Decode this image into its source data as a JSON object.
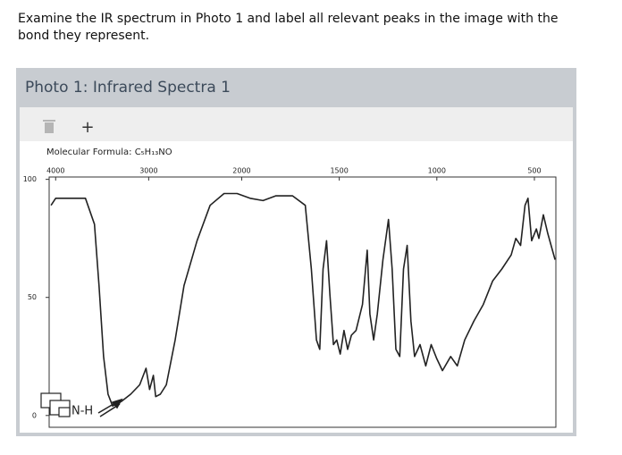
{
  "question": "Examine the IR spectrum in Photo 1 and label all relevant peaks in the image with the bond they represent.",
  "panel": {
    "title": "Photo 1: Infrared Spectra 1",
    "toolbar_add": "+"
  },
  "chart_data": {
    "type": "line",
    "subtitle": "Molecular Formula: C₅H₁₃NO",
    "annotation": "N-H",
    "color": "#222222",
    "xlim": [
      4070,
      390
    ],
    "xscale_break": 2000,
    "xticks": [
      4000,
      3000,
      2000,
      1500,
      1000,
      500
    ],
    "ylim": [
      -5,
      101
    ],
    "yticks": [
      0,
      50,
      100
    ],
    "x": [
      4050,
      4000,
      3680,
      3583,
      3534,
      3485,
      3437,
      3388,
      3291,
      3194,
      3097,
      3029,
      2990,
      2950,
      2925,
      2875,
      2810,
      2715,
      2620,
      2480,
      2340,
      2190,
      2050,
      1957,
      1891,
      1826,
      1739,
      1674,
      1643,
      1617,
      1600,
      1583,
      1565,
      1548,
      1530,
      1513,
      1495,
      1476,
      1457,
      1438,
      1414,
      1381,
      1357,
      1343,
      1324,
      1305,
      1276,
      1248,
      1229,
      1210,
      1190,
      1171,
      1152,
      1133,
      1114,
      1086,
      1057,
      1029,
      1000,
      971,
      929,
      895,
      857,
      810,
      762,
      714,
      667,
      619,
      595,
      571,
      548,
      533,
      514,
      490,
      477,
      454,
      431,
      394
    ],
    "values": [
      89,
      92,
      92,
      81,
      55,
      25,
      9,
      4,
      6,
      9,
      13,
      20,
      11,
      17,
      8,
      9,
      13,
      32,
      55,
      74,
      89,
      94,
      94,
      92,
      91,
      93,
      93,
      89,
      62,
      32,
      28,
      62,
      74,
      51,
      30,
      32,
      26,
      36,
      28,
      34,
      36,
      47,
      70,
      43,
      32,
      43,
      66,
      83,
      62,
      28,
      25,
      62,
      72,
      40,
      25,
      30,
      21,
      30,
      24,
      19,
      25,
      21,
      32,
      40,
      47,
      57,
      62,
      68,
      75,
      72,
      89,
      92,
      74,
      79,
      75,
      85,
      77,
      66
    ]
  }
}
